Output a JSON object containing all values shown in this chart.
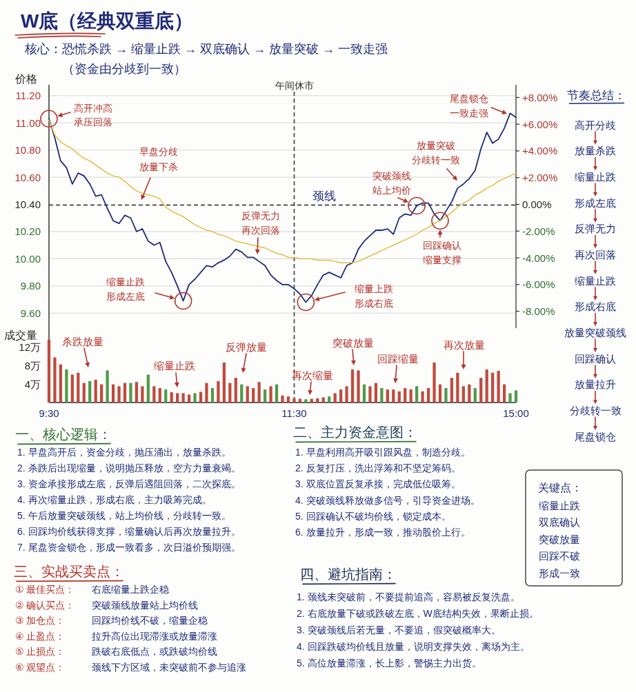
{
  "chart_data": [
    {
      "type": "line",
      "title": "W底（经典双重底）",
      "subtitle": "核心：恐慌杀跌 → 缩量止跌 → 双底确认 → 放量突破 → 一致走强",
      "ylabel": "价格",
      "categories": [
        "9:30",
        null,
        null,
        null,
        null,
        null,
        null,
        null,
        null,
        null,
        null,
        null,
        null,
        null,
        null,
        null,
        null,
        null,
        null,
        null,
        null,
        null,
        null,
        null,
        null,
        null,
        null,
        null,
        null,
        null,
        null,
        null,
        null,
        null,
        null,
        null,
        null,
        null,
        null,
        null,
        null,
        null,
        "11:30",
        null,
        null,
        null,
        null,
        null,
        null,
        null,
        null,
        null,
        null,
        null,
        null,
        null,
        null,
        null,
        null,
        null,
        null,
        null,
        null,
        null,
        null,
        null,
        null,
        null,
        null,
        null,
        null,
        null,
        null,
        null,
        null,
        null,
        null,
        null,
        null,
        null,
        "15:00"
      ],
      "ylim": [
        9.49,
        11.28
      ],
      "yticks": [
        {
          "value": 11.2,
          "label": "11.20"
        },
        {
          "value": 11.0,
          "label": "11.00"
        },
        {
          "value": 10.8,
          "label": "10.80"
        },
        {
          "value": 10.6,
          "label": "10.60"
        },
        {
          "value": 10.4,
          "label": "10.40"
        },
        {
          "value": 10.2,
          "label": "10.20"
        },
        {
          "value": 10.0,
          "label": "10.00"
        },
        {
          "value": 9.8,
          "label": "9.80"
        },
        {
          "value": 9.6,
          "label": "9.60"
        }
      ],
      "y2lim": [
        -9.26,
        8.95
      ],
      "y2ticks": [
        {
          "value": 8,
          "label": "+8.00%"
        },
        {
          "value": 6,
          "label": "+6.00%"
        },
        {
          "value": 4,
          "label": "+4.00%"
        },
        {
          "value": 2,
          "label": "+2.00%"
        },
        {
          "value": 0,
          "label": "0.00%"
        },
        {
          "value": -2,
          "label": "-2.00%"
        },
        {
          "value": -4,
          "label": "-4.00%"
        },
        {
          "value": -6,
          "label": "-6.00%"
        },
        {
          "value": -8,
          "label": "-8.00%"
        }
      ],
      "grid": "y",
      "tick_labels": "y",
      "series": [
        {
          "color": "#1f2a7a",
          "values": [
            11.03,
            10.89,
            10.72,
            10.67,
            10.55,
            10.63,
            10.61,
            10.55,
            10.46,
            10.47,
            10.37,
            10.28,
            10.26,
            10.32,
            10.3,
            10.2,
            10.22,
            10.13,
            10.1,
            10.12,
            9.98,
            9.9,
            9.8,
            9.69,
            9.81,
            9.85,
            9.9,
            9.95,
            9.94,
            9.97,
            9.99,
            10.02,
            10.07,
            10.05,
            10.01,
            10.01,
            9.98,
            9.95,
            9.88,
            9.84,
            9.81,
            9.81,
            9.78,
            9.74,
            9.68,
            9.73,
            9.81,
            9.88,
            9.9,
            9.88,
            9.86,
            9.95,
            9.97,
            10.07,
            10.13,
            10.17,
            10.21,
            10.21,
            10.22,
            10.18,
            10.3,
            10.33,
            10.32,
            10.39,
            10.41,
            10.41,
            10.33,
            10.28,
            10.35,
            10.42,
            10.52,
            10.55,
            10.59,
            10.65,
            10.81,
            10.93,
            10.85,
            10.88,
            10.96,
            11.07,
            11.04
          ]
        },
        {
          "color": "#e3bd45",
          "values": [
            11.02,
            10.91,
            10.86,
            10.83,
            10.81,
            10.77,
            10.74,
            10.72,
            10.69,
            10.66,
            10.63,
            10.61,
            10.6,
            10.57,
            10.53,
            10.5,
            10.48,
            10.47,
            10.46,
            10.44,
            10.38,
            10.35,
            10.33,
            10.31,
            10.28,
            10.25,
            10.23,
            10.21,
            10.2,
            10.18,
            10.17,
            10.15,
            10.13,
            10.12,
            10.11,
            10.1,
            10.09,
            10.08,
            10.06,
            10.04,
            10.03,
            10.01,
            10.01,
            10.0,
            10.0,
            10.0,
            9.99,
            9.99,
            9.99,
            9.98,
            9.97,
            9.97,
            9.97,
            9.98,
            10.0,
            10.02,
            10.04,
            10.06,
            10.08,
            10.1,
            10.12,
            10.14,
            10.16,
            10.18,
            10.21,
            10.23,
            10.26,
            10.28,
            10.31,
            10.34,
            10.38,
            10.41,
            10.43,
            10.47,
            10.49,
            10.52,
            10.54,
            10.57,
            10.59,
            10.61,
            10.63
          ]
        }
      ],
      "ref_lines": [
        {
          "axis": "y",
          "value": 10.4,
          "label": "颈线",
          "line_style": "dashed"
        },
        {
          "axis": "x",
          "value": "11:30",
          "label": "午间休市",
          "line_style": "dashed"
        }
      ],
      "annotations": [
        "（资金由分歧到一致）",
        "高开冲高",
        "承压回落",
        "早盘分歧",
        "放量下杀",
        "缩量止跌",
        "形成左底",
        "反弹无力",
        "再次回落",
        "缩量上跌",
        "形成右底",
        "突破颈线",
        "站上均价",
        "放量突破",
        "分歧转一致",
        "回踩确认",
        "缩量支撑",
        "尾盘锁仓",
        "一致走强"
      ]
    },
    {
      "type": "bar",
      "ylabel": "成交量",
      "categories": [
        "9:30",
        null,
        null,
        null,
        null,
        null,
        null,
        null,
        null,
        null,
        null,
        null,
        null,
        null,
        null,
        null,
        null,
        null,
        null,
        null,
        null,
        null,
        null,
        null,
        null,
        null,
        null,
        null,
        null,
        null,
        null,
        null,
        null,
        null,
        null,
        null,
        null,
        null,
        null,
        null,
        null,
        null,
        "11:30",
        null,
        null,
        null,
        null,
        null,
        null,
        null,
        null,
        null,
        null,
        null,
        null,
        null,
        null,
        null,
        null,
        null,
        null,
        null,
        null,
        null,
        null,
        null,
        null,
        null,
        null,
        null,
        null,
        null,
        null,
        null,
        null,
        null,
        null,
        null,
        null,
        null,
        "15:00"
      ],
      "ylim": [
        0,
        16
      ],
      "yticks": [
        {
          "value": 4,
          "label": "4万"
        },
        {
          "value": 8,
          "label": "8万"
        },
        {
          "value": 12,
          "label": "12万"
        }
      ],
      "values": [
        13.5,
        9.7,
        8.2,
        7.1,
        6.0,
        6.4,
        4.2,
        4.6,
        4.9,
        3.9,
        6.9,
        3.9,
        3.5,
        4.2,
        4.2,
        4.4,
        3.5,
        6.0,
        3.5,
        3.1,
        2.8,
        2.2,
        2.0,
        2.0,
        1.7,
        2.0,
        2.3,
        4.2,
        3.1,
        4.6,
        8.6,
        4.2,
        5.3,
        3.9,
        3.5,
        3.1,
        4.4,
        2.8,
        3.5,
        3.9,
        1.5,
        1.3,
        0.9,
        0.8,
        0.7,
        0.8,
        0.9,
        1.1,
        1.3,
        2.0,
        2.8,
        3.5,
        7.1,
        6.9,
        3.9,
        3.5,
        4.2,
        3.1,
        2.8,
        2.8,
        2.4,
        3.1,
        2.8,
        3.5,
        2.4,
        3.1,
        8.6,
        3.9,
        3.1,
        5.3,
        6.4,
        3.5,
        3.9,
        3.1,
        5.3,
        7.1,
        6.4,
        6.8,
        3.9,
        2.0,
        2.6
      ],
      "colors": [
        "#bf4a3c",
        "#bf4a3c",
        "#bf4a3c",
        "#4f9a48",
        "#bf4a3c",
        "#bf4a3c",
        "#bf4a3c",
        "#4f9a48",
        "#bf4a3c",
        "#bf4a3c",
        "#4f9a48",
        "#bf4a3c",
        "#bf4a3c",
        "#bf4a3c",
        "#4f9a48",
        "#bf4a3c",
        "#bf4a3c",
        "#4f9a48",
        "#bf4a3c",
        "#bf4a3c",
        "#4f9a48",
        "#bf4a3c",
        "#bf4a3c",
        "#bf4a3c",
        "#bf4a3c",
        "#4f9a48",
        "#bf4a3c",
        "#bf4a3c",
        "#4f9a48",
        "#bf4a3c",
        "#bf4a3c",
        "#bf4a3c",
        "#bf4a3c",
        "#4f9a48",
        "#bf4a3c",
        "#bf4a3c",
        "#bf4a3c",
        "#4f9a48",
        "#bf4a3c",
        "#4f9a48",
        "#bf4a3c",
        "#bf4a3c",
        "#bf4a3c",
        "#bf4a3c",
        "#4f9a48",
        "#bf4a3c",
        "#bf4a3c",
        "#bf4a3c",
        "#4f9a48",
        "#bf4a3c",
        "#bf4a3c",
        "#bf4a3c",
        "#bf4a3c",
        "#bf4a3c",
        "#4f9a48",
        "#bf4a3c",
        "#bf4a3c",
        "#4f9a48",
        "#bf4a3c",
        "#bf4a3c",
        "#bf4a3c",
        "#bf4a3c",
        "#bf4a3c",
        "#4f9a48",
        "#bf4a3c",
        "#bf4a3c",
        "#bf4a3c",
        "#bf4a3c",
        "#4f9a48",
        "#bf4a3c",
        "#bf4a3c",
        "#bf4a3c",
        "#bf4a3c",
        "#4f9a48",
        "#bf4a3c",
        "#bf4a3c",
        "#bf4a3c",
        "#bf4a3c",
        "#bf4a3c",
        "#4f9a48",
        "#4f9a48"
      ],
      "ref_lines": [
        {
          "axis": "x",
          "value": "11:30",
          "line_style": "dashed"
        }
      ],
      "annotations": [
        "杀跌放量",
        "缩量止跌",
        "反弹放量",
        "再次缩量",
        "突破放量",
        "回踩缩量",
        "再次放量"
      ]
    },
    {
      "type": "other",
      "title": "节奏总结：",
      "annotations": [
        "高开分歧",
        "放量杀跌",
        "缩量止跌",
        "形成左底",
        "反弹无力",
        "再次回落",
        "缩量止跌",
        "形成右底",
        "放量突破颈线",
        "回踩确认",
        "放量拉升",
        "分歧转一致",
        "尾盘锁仓"
      ]
    },
    {
      "type": "other",
      "title": "一、核心逻辑：",
      "annotations": [
        "1. 早盘高开后，资金分歧，抛压涌出，放量杀跌。",
        "2. 杀跌后出现缩量，说明抛压释放，空方力量衰竭。",
        "3. 资金承接形成左底，反弹后遇阻回落，二次探底。",
        "4. 再次缩量止跌，形成右底，主力吸筹完成。",
        "5. 午后放量突破颈线，站上均价线，分歧转一致。",
        "6. 回踩均价线获得支撑，缩量确认后再次放量拉升。",
        "7. 尾盘资金锁仓，形成一致看多，次日溢价预期强。"
      ]
    },
    {
      "type": "other",
      "title": "二、主力资金意图：",
      "annotations": [
        "1. 早盘利用高开吸引跟风盘，制造分歧。",
        "2. 反复打压，洗出浮筹和不坚定筹码。",
        "3. 双底位置反复承接，完成低位吸筹。",
        "4. 突破颈线释放做多信号，引导资金进场。",
        "5. 回踩确认不破均价线，锁定成本。",
        "6. 放量拉升，形成一致，推动股价上行。"
      ]
    },
    {
      "type": "other",
      "title": "关键点：",
      "annotations": [
        "缩量止跌",
        "双底确认",
        "突破放量",
        "回踩不破",
        "形成一致"
      ]
    },
    {
      "type": "other",
      "title": "三、实战买卖点：",
      "annotations": [
        "① 最佳买点：",
        "右底缩量上跌企稳",
        "② 确认买点：",
        "突破颈线放量站上均价线",
        "③ 加仓点：",
        "回踩均价线不破，缩量企稳",
        "④ 止盈点：",
        "拉升高位出现滞涨或放量滞涨",
        "⑤ 止损点：",
        "跌破右底低点，或跌破均价线",
        "⑥ 观望点：",
        "颈线下方区域，未突破前不参与追涨"
      ]
    },
    {
      "type": "other",
      "title": "四、避坑指南：",
      "annotations": [
        "1. 颈线未突破前，不要提前追高，容易被反复洗盘。",
        "2. 右底放量下破或跌破左底，W底结构失效，果断止损。",
        "3. 突破颈线后若无量，不要追，假突破概率大。",
        "4. 回踩跌破均价线且放量，说明支撑失效，离场为主。",
        "5. 高位放量滞涨，长上影，警惕主力出货。"
      ]
    }
  ]
}
